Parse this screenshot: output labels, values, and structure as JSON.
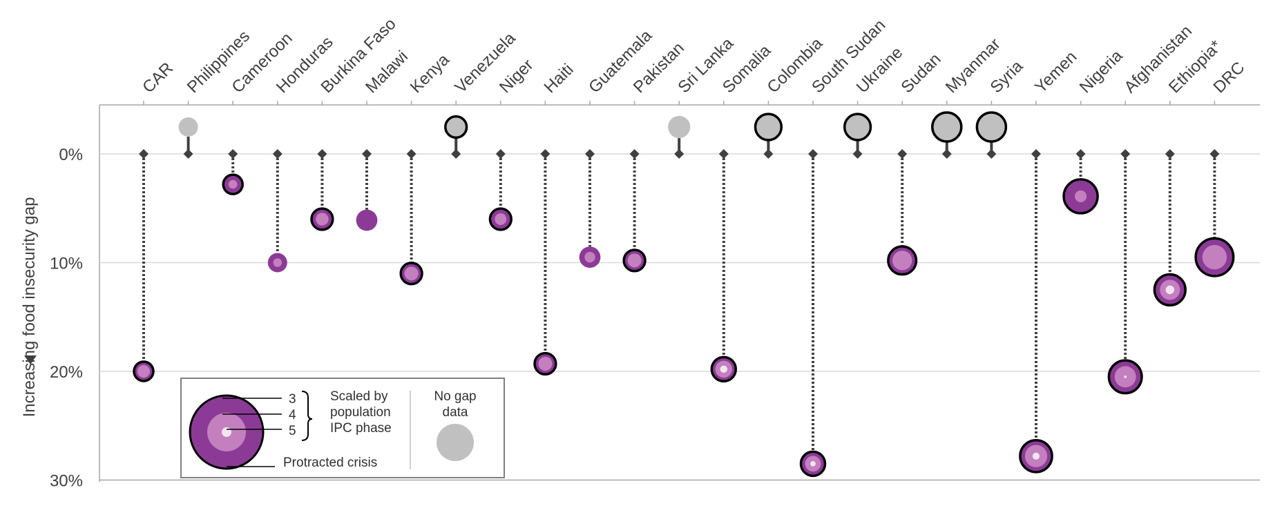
{
  "chart_data": {
    "type": "scatter",
    "ylabel": "Increasing food insecurity gap",
    "y_ticks": [
      "0%",
      "10%",
      "20%",
      "30%"
    ],
    "ylim": [
      0,
      30
    ],
    "y_inverted": true,
    "grid": true,
    "colors": {
      "phase3": "#8b3b96",
      "phase4": "#c47fbe",
      "phase5": "#f3e4f2",
      "no_gap": "#c0c0c0",
      "marker": "#404040",
      "grid": "#d9d9d9"
    },
    "countries": [
      {
        "name": "CAR",
        "gap": 20,
        "size": 1,
        "phase4": 0.65,
        "phase5": 0,
        "protracted": true,
        "no_gap": false
      },
      {
        "name": "Philippines",
        "gap": null,
        "size": 1,
        "phase4": 0,
        "phase5": 0,
        "protracted": false,
        "no_gap": true
      },
      {
        "name": "Cameroon",
        "gap": 2.8,
        "size": 1,
        "phase4": 0.45,
        "phase5": 0,
        "protracted": true,
        "no_gap": false
      },
      {
        "name": "Honduras",
        "gap": 10,
        "size": 1,
        "phase4": 0.45,
        "phase5": 0,
        "protracted": false,
        "no_gap": false
      },
      {
        "name": "Burkina Faso",
        "gap": 6,
        "size": 1.1,
        "phase4": 0.6,
        "phase5": 0,
        "protracted": true,
        "no_gap": false
      },
      {
        "name": "Malawi",
        "gap": 6.1,
        "size": 1.1,
        "phase4": 0,
        "phase5": 0,
        "protracted": false,
        "no_gap": false
      },
      {
        "name": "Kenya",
        "gap": 11,
        "size": 1.1,
        "phase4": 0.65,
        "phase5": 0,
        "protracted": true,
        "no_gap": false
      },
      {
        "name": "Venezuela",
        "gap": null,
        "size": 1.1,
        "phase4": 0,
        "phase5": 0,
        "protracted": true,
        "no_gap": true
      },
      {
        "name": "Niger",
        "gap": 6,
        "size": 1.1,
        "phase4": 0.55,
        "phase5": 0,
        "protracted": true,
        "no_gap": false
      },
      {
        "name": "Haiti",
        "gap": 19.3,
        "size": 1.1,
        "phase4": 0.65,
        "phase5": 0,
        "protracted": true,
        "no_gap": false
      },
      {
        "name": "Guatemala",
        "gap": 9.5,
        "size": 1.1,
        "phase4": 0.5,
        "phase5": 0,
        "protracted": false,
        "no_gap": false
      },
      {
        "name": "Pakistan",
        "gap": 9.8,
        "size": 1.1,
        "phase4": 0.65,
        "phase5": 0,
        "protracted": true,
        "no_gap": false
      },
      {
        "name": "Sri Lanka",
        "gap": null,
        "size": 1.15,
        "phase4": 0,
        "phase5": 0,
        "protracted": false,
        "no_gap": true
      },
      {
        "name": "Somalia",
        "gap": 19.8,
        "size": 1.25,
        "phase4": 0.7,
        "phase5": 0.3,
        "protracted": true,
        "no_gap": false
      },
      {
        "name": "Colombia",
        "gap": null,
        "size": 1.35,
        "phase4": 0,
        "phase5": 0,
        "protracted": true,
        "no_gap": true
      },
      {
        "name": "South Sudan",
        "gap": 28.5,
        "size": 1.25,
        "phase4": 0.65,
        "phase5": 0.22,
        "protracted": true,
        "no_gap": false
      },
      {
        "name": "Ukraine",
        "gap": null,
        "size": 1.35,
        "phase4": 0,
        "phase5": 0,
        "protracted": true,
        "no_gap": true
      },
      {
        "name": "Sudan",
        "gap": 9.8,
        "size": 1.45,
        "phase4": 0.7,
        "phase5": 0,
        "protracted": true,
        "no_gap": false
      },
      {
        "name": "Myanmar",
        "gap": null,
        "size": 1.5,
        "phase4": 0,
        "phase5": 0,
        "protracted": true,
        "no_gap": true
      },
      {
        "name": "Syria",
        "gap": null,
        "size": 1.5,
        "phase4": 0,
        "phase5": 0,
        "protracted": true,
        "no_gap": true
      },
      {
        "name": "Yemen",
        "gap": 27.8,
        "size": 1.65,
        "phase4": 0.7,
        "phase5": 0.22,
        "protracted": true,
        "no_gap": false
      },
      {
        "name": "Nigeria",
        "gap": 3.9,
        "size": 1.75,
        "phase4": 0.35,
        "phase5": 0,
        "protracted": true,
        "no_gap": false
      },
      {
        "name": "Afghanistan",
        "gap": 20.5,
        "size": 1.7,
        "phase4": 0.65,
        "phase5": 0.08,
        "protracted": true,
        "no_gap": false
      },
      {
        "name": "Ethiopia*",
        "gap": 12.5,
        "size": 1.6,
        "phase4": 0.65,
        "phase5": 0.28,
        "protracted": true,
        "no_gap": false
      },
      {
        "name": "DRC",
        "gap": 9.5,
        "size": 1.95,
        "phase4": 0.65,
        "phase5": 0,
        "protracted": true,
        "no_gap": false
      }
    ]
  },
  "legend": {
    "phase_3": "3",
    "phase_4": "4",
    "phase_5": "5",
    "scaled_line1": "Scaled by",
    "scaled_line2": "population",
    "scaled_line3": "IPC phase",
    "protracted": "Protracted crisis",
    "no_gap_line1": "No gap",
    "no_gap_line2": "data"
  }
}
